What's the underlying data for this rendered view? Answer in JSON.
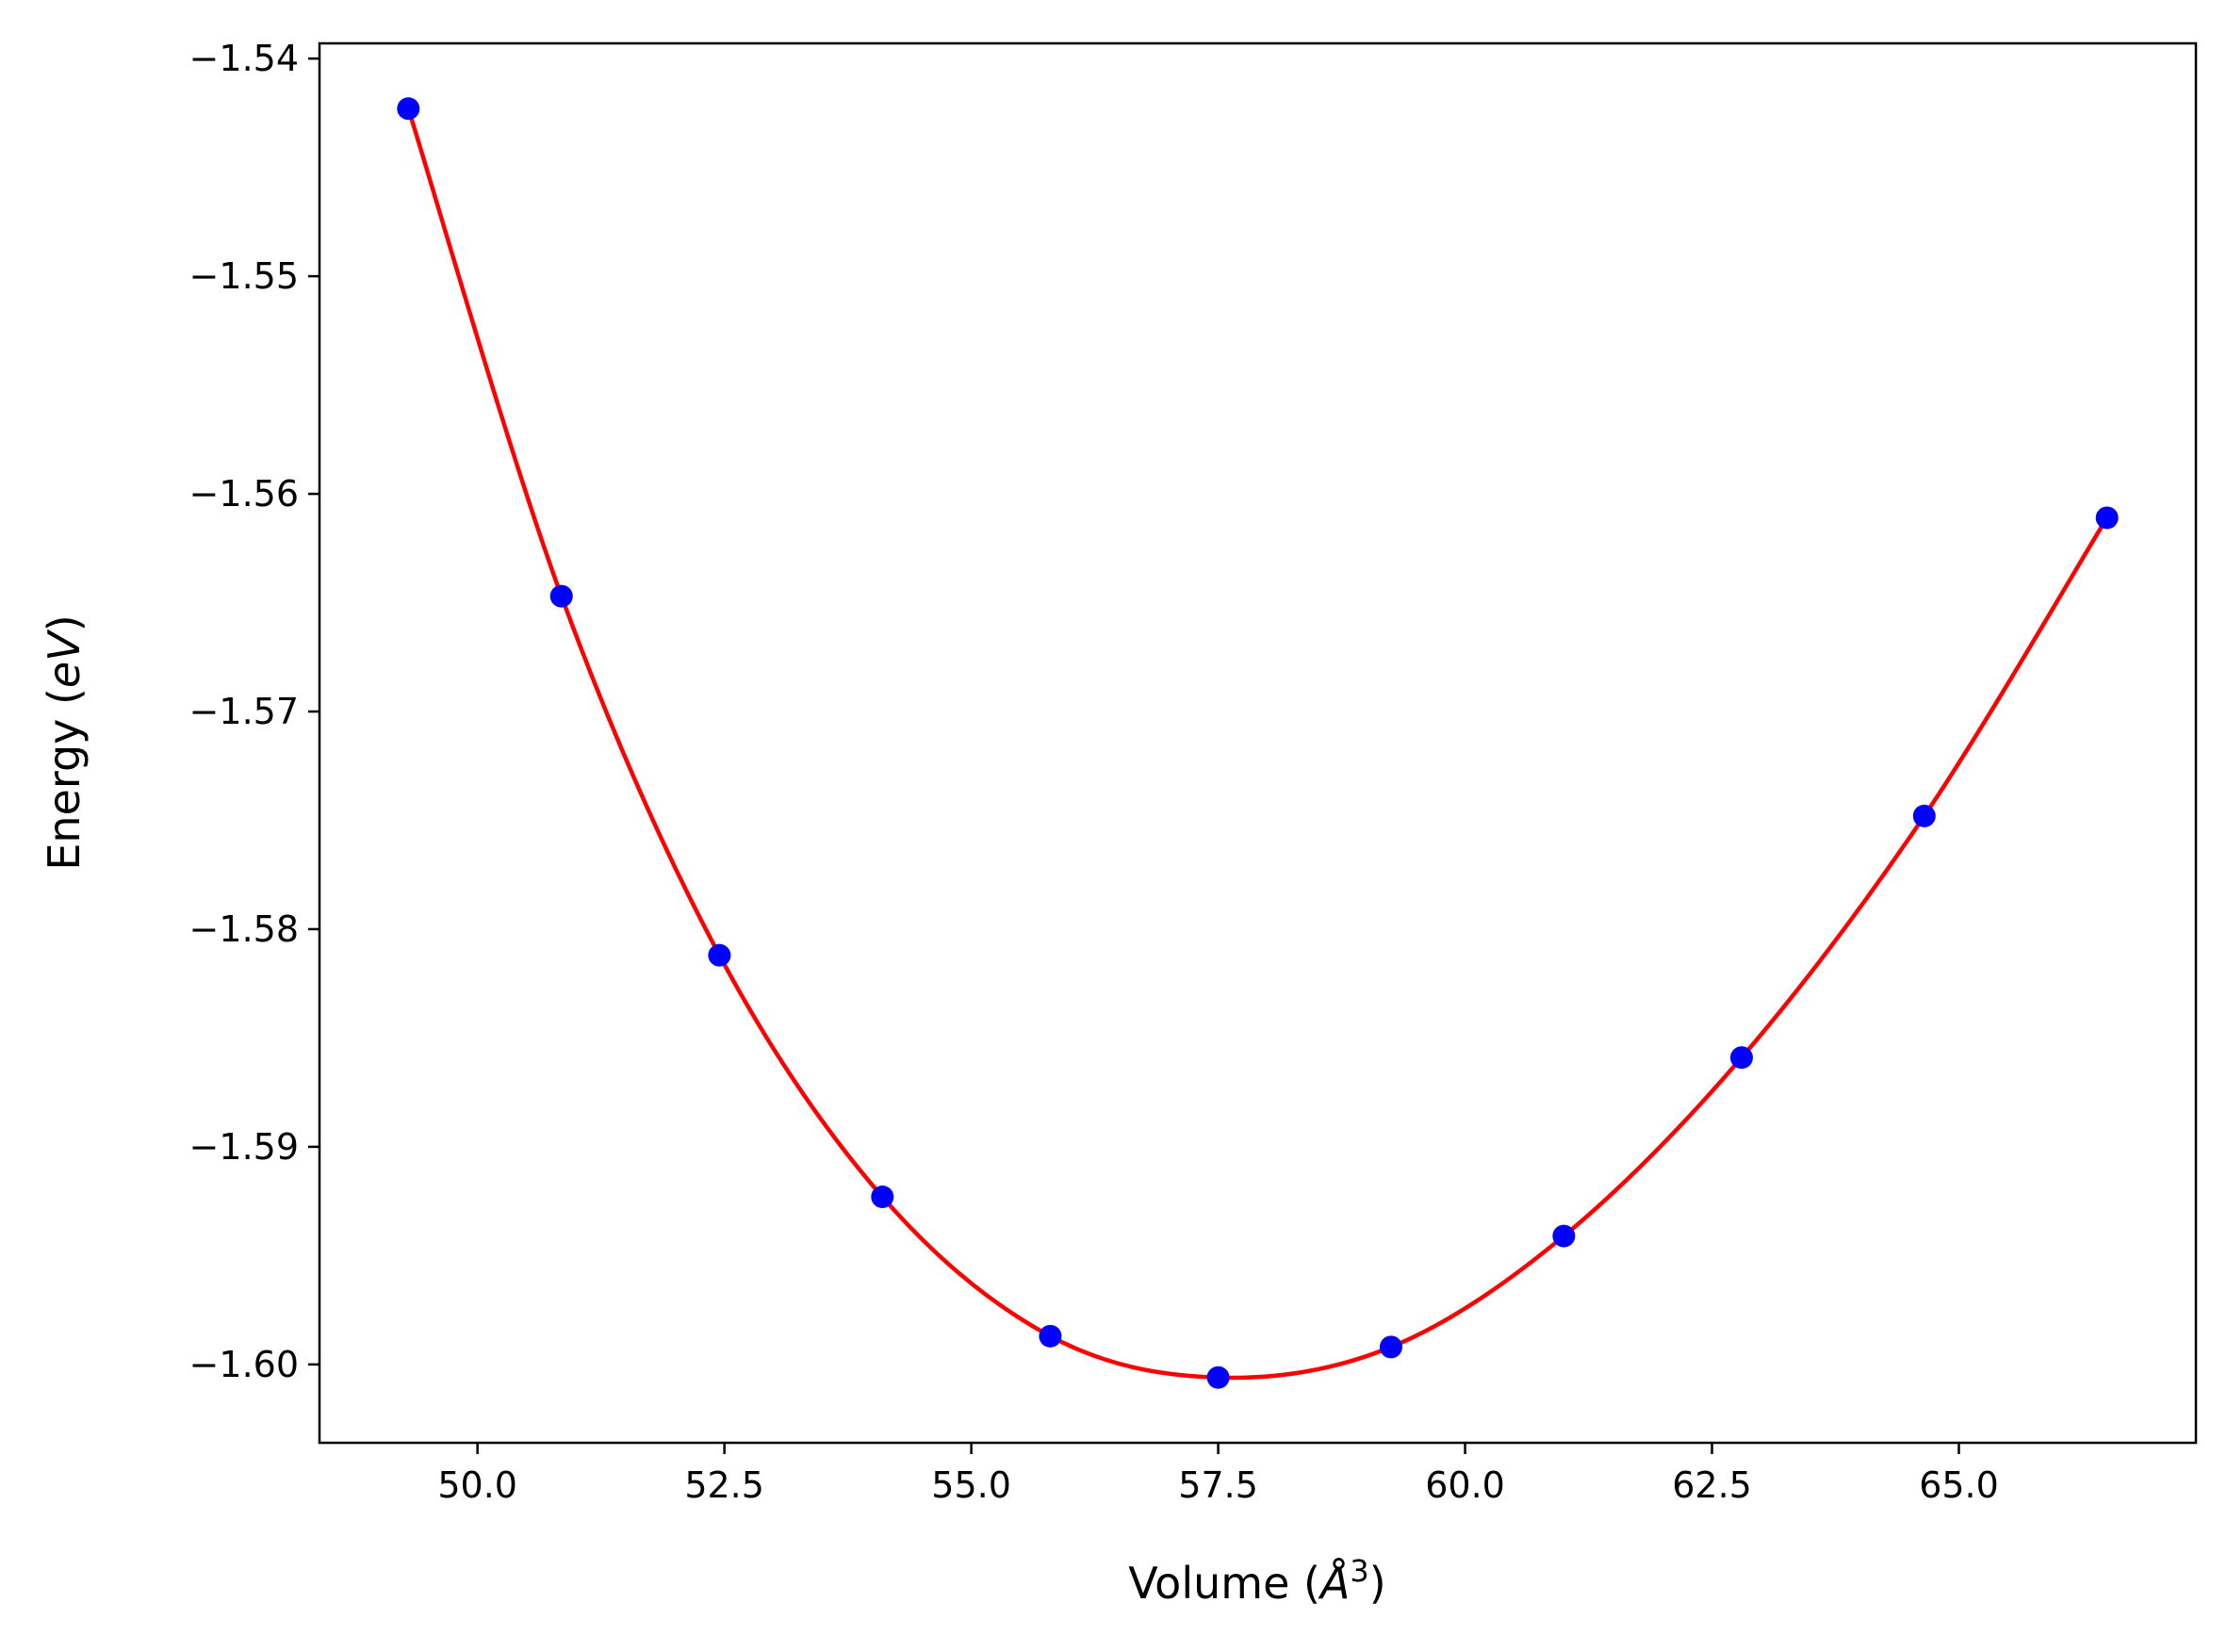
{
  "chart_data": {
    "type": "scatter",
    "title": "",
    "xlabel": {
      "prefix": "Volume (",
      "unit": "Å",
      "exponent": "3",
      "suffix": ")"
    },
    "ylabel": {
      "prefix": "Energy (",
      "unit": "eV",
      "suffix": ")"
    },
    "xlim": [
      48.4,
      67.4
    ],
    "ylim": [
      -1.6036,
      -1.5393
    ],
    "xticks": [
      50.0,
      52.5,
      55.0,
      57.5,
      60.0,
      62.5,
      65.0
    ],
    "xtick_labels": [
      "50.0",
      "52.5",
      "55.0",
      "57.5",
      "60.0",
      "62.5",
      "65.0"
    ],
    "yticks": [
      -1.54,
      -1.55,
      -1.56,
      -1.57,
      -1.58,
      -1.59,
      -1.6
    ],
    "ytick_labels": [
      "−1.54",
      "−1.55",
      "−1.56",
      "−1.57",
      "−1.58",
      "−1.59",
      "−1.60"
    ],
    "grid": false,
    "series": [
      {
        "name": "data points",
        "style": "markers",
        "color": "#0000ff",
        "x": [
          49.3,
          50.85,
          52.45,
          54.1,
          55.8,
          57.5,
          59.25,
          61.0,
          62.8,
          64.65,
          66.5
        ],
        "y": [
          -1.5423,
          -1.5647,
          -1.5812,
          -1.5923,
          -1.5987,
          -1.6006,
          -1.5992,
          -1.5941,
          -1.5859,
          -1.5748,
          -1.5611
        ]
      },
      {
        "name": "fit",
        "style": "line",
        "color": "#ff0000",
        "x": [
          49.3,
          50.85,
          52.45,
          54.1,
          55.8,
          57.5,
          59.25,
          61.0,
          62.8,
          64.65,
          66.5
        ],
        "y": [
          -1.5423,
          -1.5647,
          -1.5812,
          -1.5923,
          -1.5987,
          -1.6006,
          -1.5992,
          -1.5941,
          -1.5859,
          -1.5748,
          -1.5611
        ]
      }
    ]
  }
}
